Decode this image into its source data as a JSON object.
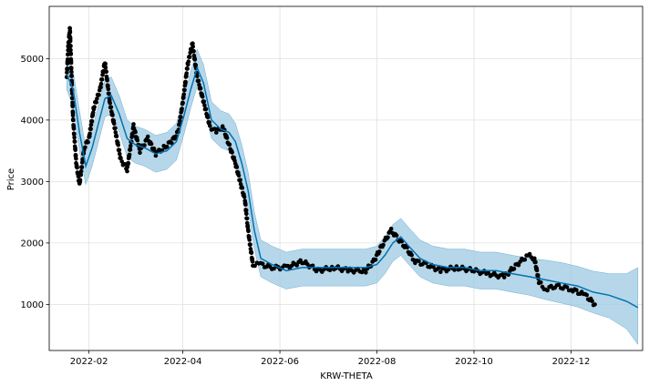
{
  "chart_data": {
    "type": "line",
    "xlabel": "KRW-THETA",
    "ylabel": "Price",
    "x_range": [
      "2022-01-07",
      "2023-01-15"
    ],
    "y_range": [
      250,
      5850
    ],
    "grid": true,
    "x_ticks": [
      "2022-02",
      "2022-04",
      "2022-06",
      "2022-08",
      "2022-10",
      "2022-12"
    ],
    "y_ticks": [
      1000,
      2000,
      3000,
      4000,
      5000
    ],
    "colors": {
      "forecast": "#0072B2",
      "interval": "#9ecae1",
      "observed": "#000000"
    },
    "series": [
      {
        "role": "observed",
        "x": [
          "2022-01-18",
          "2022-01-19",
          "2022-01-20",
          "2022-01-22",
          "2022-01-24",
          "2022-01-26",
          "2022-01-29",
          "2022-02-01",
          "2022-02-04",
          "2022-02-08",
          "2022-02-11",
          "2022-02-14",
          "2022-02-17",
          "2022-02-21",
          "2022-02-25",
          "2022-03-01",
          "2022-03-05",
          "2022-03-10",
          "2022-03-15",
          "2022-03-20",
          "2022-03-25",
          "2022-03-29",
          "2022-04-01",
          "2022-04-04",
          "2022-04-07",
          "2022-04-10",
          "2022-04-14",
          "2022-04-18",
          "2022-04-22",
          "2022-04-26",
          "2022-04-30",
          "2022-05-04",
          "2022-05-08",
          "2022-05-10",
          "2022-05-12",
          "2022-05-15",
          "2022-05-20",
          "2022-05-27",
          "2022-06-05",
          "2022-06-15",
          "2022-06-25",
          "2022-07-05",
          "2022-07-15",
          "2022-07-25",
          "2022-07-30",
          "2022-08-05",
          "2022-08-10",
          "2022-08-15",
          "2022-08-20",
          "2022-08-25",
          "2022-09-01",
          "2022-09-10",
          "2022-09-20",
          "2022-10-01",
          "2022-10-10",
          "2022-10-20",
          "2022-10-28",
          "2022-11-04",
          "2022-11-08",
          "2022-11-11",
          "2022-11-15",
          "2022-11-22",
          "2022-12-01",
          "2022-12-10",
          "2022-12-16"
        ],
        "y": [
          4700,
          5200,
          5500,
          4000,
          3300,
          2950,
          3550,
          3700,
          4200,
          4500,
          4950,
          4300,
          3900,
          3350,
          3200,
          3900,
          3500,
          3700,
          3450,
          3550,
          3650,
          3800,
          4300,
          4900,
          5250,
          4700,
          4300,
          3900,
          3800,
          3900,
          3600,
          3300,
          2900,
          2700,
          2200,
          1650,
          1650,
          1600,
          1600,
          1700,
          1550,
          1600,
          1550,
          1550,
          1700,
          2000,
          2200,
          2050,
          1900,
          1700,
          1650,
          1550,
          1600,
          1550,
          1500,
          1450,
          1650,
          1800,
          1750,
          1350,
          1250,
          1300,
          1250,
          1150,
          1000
        ]
      },
      {
        "role": "forecast",
        "x": [
          "2022-01-18",
          "2022-01-22",
          "2022-01-26",
          "2022-01-30",
          "2022-02-03",
          "2022-02-07",
          "2022-02-11",
          "2022-02-15",
          "2022-02-20",
          "2022-02-25",
          "2022-03-02",
          "2022-03-08",
          "2022-03-15",
          "2022-03-22",
          "2022-03-28",
          "2022-04-02",
          "2022-04-06",
          "2022-04-10",
          "2022-04-14",
          "2022-04-19",
          "2022-04-25",
          "2022-04-30",
          "2022-05-04",
          "2022-05-08",
          "2022-05-12",
          "2022-05-16",
          "2022-05-20",
          "2022-05-27",
          "2022-06-05",
          "2022-06-15",
          "2022-06-25",
          "2022-07-05",
          "2022-07-15",
          "2022-07-25",
          "2022-08-01",
          "2022-08-06",
          "2022-08-11",
          "2022-08-16",
          "2022-08-21",
          "2022-08-28",
          "2022-09-05",
          "2022-09-15",
          "2022-09-25",
          "2022-10-05",
          "2022-10-15",
          "2022-10-25",
          "2022-11-05",
          "2022-11-15",
          "2022-11-25",
          "2022-12-05",
          "2022-12-15",
          "2022-12-25",
          "2023-01-05",
          "2023-01-12"
        ],
        "y": [
          4750,
          4500,
          3800,
          3250,
          3550,
          3950,
          4350,
          4400,
          4100,
          3700,
          3600,
          3550,
          3450,
          3500,
          3650,
          4100,
          4500,
          4850,
          4600,
          4000,
          3850,
          3800,
          3650,
          3300,
          2850,
          2200,
          1750,
          1650,
          1550,
          1600,
          1600,
          1600,
          1600,
          1600,
          1650,
          1800,
          2000,
          2100,
          1950,
          1750,
          1650,
          1600,
          1600,
          1550,
          1550,
          1500,
          1450,
          1400,
          1350,
          1300,
          1200,
          1150,
          1050,
          950
        ]
      },
      {
        "role": "interval_upper",
        "x": [
          "2022-01-18",
          "2022-01-22",
          "2022-01-26",
          "2022-01-30",
          "2022-02-03",
          "2022-02-07",
          "2022-02-11",
          "2022-02-15",
          "2022-02-20",
          "2022-02-25",
          "2022-03-02",
          "2022-03-08",
          "2022-03-15",
          "2022-03-22",
          "2022-03-28",
          "2022-04-02",
          "2022-04-06",
          "2022-04-10",
          "2022-04-14",
          "2022-04-19",
          "2022-04-25",
          "2022-04-30",
          "2022-05-04",
          "2022-05-08",
          "2022-05-12",
          "2022-05-16",
          "2022-05-20",
          "2022-05-27",
          "2022-06-05",
          "2022-06-15",
          "2022-06-25",
          "2022-07-05",
          "2022-07-15",
          "2022-07-25",
          "2022-08-01",
          "2022-08-06",
          "2022-08-11",
          "2022-08-16",
          "2022-08-21",
          "2022-08-28",
          "2022-09-05",
          "2022-09-15",
          "2022-09-25",
          "2022-10-05",
          "2022-10-15",
          "2022-10-25",
          "2022-11-05",
          "2022-11-15",
          "2022-11-25",
          "2022-12-05",
          "2022-12-15",
          "2022-12-25",
          "2023-01-05",
          "2023-01-12"
        ],
        "y": [
          5000,
          4800,
          4150,
          3550,
          3850,
          4250,
          4650,
          4700,
          4400,
          4000,
          3900,
          3850,
          3750,
          3800,
          3950,
          4400,
          4800,
          5150,
          4900,
          4300,
          4150,
          4100,
          3950,
          3600,
          3150,
          2500,
          2050,
          1950,
          1850,
          1900,
          1900,
          1900,
          1900,
          1900,
          1950,
          2100,
          2300,
          2400,
          2250,
          2050,
          1950,
          1900,
          1900,
          1850,
          1850,
          1800,
          1750,
          1720,
          1680,
          1620,
          1540,
          1500,
          1500,
          1600
        ]
      },
      {
        "role": "interval_lower",
        "x": [
          "2022-01-18",
          "2022-01-22",
          "2022-01-26",
          "2022-01-30",
          "2022-02-03",
          "2022-02-07",
          "2022-02-11",
          "2022-02-15",
          "2022-02-20",
          "2022-02-25",
          "2022-03-02",
          "2022-03-08",
          "2022-03-15",
          "2022-03-22",
          "2022-03-28",
          "2022-04-02",
          "2022-04-06",
          "2022-04-10",
          "2022-04-14",
          "2022-04-19",
          "2022-04-25",
          "2022-04-30",
          "2022-05-04",
          "2022-05-08",
          "2022-05-12",
          "2022-05-16",
          "2022-05-20",
          "2022-05-27",
          "2022-06-05",
          "2022-06-15",
          "2022-06-25",
          "2022-07-05",
          "2022-07-15",
          "2022-07-25",
          "2022-08-01",
          "2022-08-06",
          "2022-08-11",
          "2022-08-16",
          "2022-08-21",
          "2022-08-28",
          "2022-09-05",
          "2022-09-15",
          "2022-09-25",
          "2022-10-05",
          "2022-10-15",
          "2022-10-25",
          "2022-11-05",
          "2022-11-15",
          "2022-11-25",
          "2022-12-05",
          "2022-12-15",
          "2022-12-25",
          "2023-01-05",
          "2023-01-12"
        ],
        "y": [
          4500,
          4200,
          3500,
          2950,
          3250,
          3650,
          4050,
          4100,
          3800,
          3400,
          3300,
          3250,
          3150,
          3200,
          3350,
          3800,
          4200,
          4550,
          4300,
          3700,
          3550,
          3500,
          3350,
          3000,
          2550,
          1900,
          1450,
          1350,
          1250,
          1300,
          1300,
          1300,
          1300,
          1300,
          1350,
          1500,
          1700,
          1800,
          1650,
          1450,
          1350,
          1300,
          1300,
          1250,
          1250,
          1200,
          1150,
          1080,
          1020,
          960,
          860,
          780,
          600,
          350
        ]
      }
    ]
  }
}
